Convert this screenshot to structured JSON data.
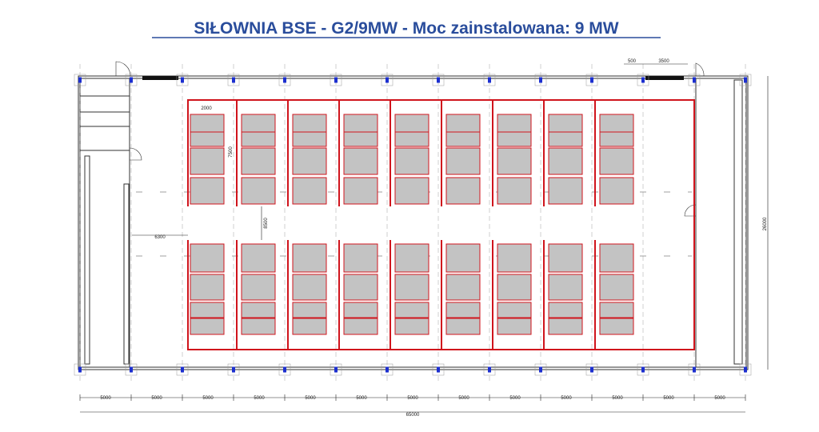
{
  "title": "SIŁOWNIA BSE - G2/9MW  -  Moc zainstalowana: 9 MW",
  "dimensions": {
    "bottom_segments": [
      "5000",
      "5000",
      "5000",
      "5000",
      "5000",
      "5000",
      "5000",
      "5000",
      "5000",
      "5000",
      "5000",
      "5000",
      "5000"
    ],
    "total_width": "65000",
    "height": "26000",
    "module_width": "2000",
    "module_length": "7500",
    "aisle": "8500",
    "side_clearance": "6300",
    "door_offset": "500",
    "door_width": "3500"
  }
}
